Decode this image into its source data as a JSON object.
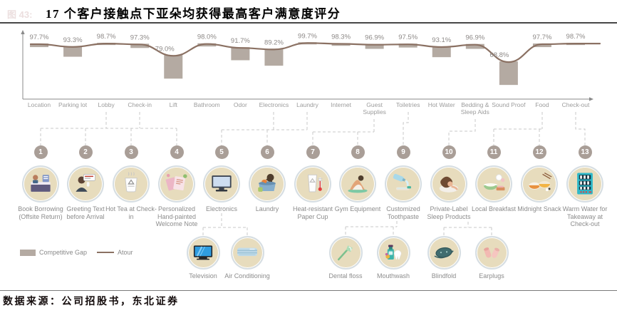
{
  "header": {
    "ghost_label": "图 43:",
    "title": "17 个客户接触点下亚朵均获得最高客户满意度评分"
  },
  "chart_data": {
    "type": "line",
    "title": "17 个客户接触点下亚朵均获得最高客户满意度评分",
    "categories": [
      "Location",
      "Parking lot",
      "Lobby",
      "Check-in",
      "Lift",
      "Bathroom",
      "Odor",
      "Electronics",
      "Laundry",
      "Internet",
      "Guest Supplies",
      "Toiletries",
      "Hot Water",
      "Bedding & Sleep Aids",
      "Sound Proof",
      "Food",
      "Check-out"
    ],
    "series": [
      {
        "name": "Atour",
        "type": "line",
        "color": "#8b7163",
        "unit": "%",
        "values": [
          97.7,
          93.3,
          98.7,
          97.3,
          79.0,
          98.0,
          91.7,
          89.2,
          99.7,
          98.3,
          96.9,
          97.5,
          93.1,
          96.9,
          68.8,
          97.7,
          98.7
        ]
      },
      {
        "name": "Competitive Gap",
        "type": "bar",
        "color": "#b4aaa2",
        "note": "gray bars hang below the Atour line at each touchpoint; bar length depicts the satisfaction gap (no numeric labels shown)"
      }
    ],
    "value_labels": [
      "97.7%",
      "93.3%",
      "98.7%",
      "97.3%",
      "79.0%",
      "98.0%",
      "91.7%",
      "89.2%",
      "99.7%",
      "98.3%",
      "96.9%",
      "97.5%",
      "93.1%",
      "96.9%",
      "68.8%",
      "97.7%",
      "98.7%"
    ],
    "ylim": [
      60,
      100
    ],
    "grid": false,
    "axes": "plain arrowed axes, no tick values",
    "legend_position": "bottom-left"
  },
  "services": [
    {
      "num": "1",
      "label": "Book Borrowing (Offsite Return)",
      "icon": "library-books-icon",
      "linked_touchpoints": [
        "Lobby",
        "Check-in"
      ]
    },
    {
      "num": "2",
      "label": "Greeting Text before Arrival",
      "icon": "greeting-message-icon",
      "linked_touchpoints": [
        "Lobby",
        "Check-in"
      ]
    },
    {
      "num": "3",
      "label": "Hot Tea at Check-in",
      "icon": "tea-cup-icon",
      "linked_touchpoints": [
        "Lobby",
        "Check-in"
      ]
    },
    {
      "num": "4",
      "label": "Personalized Hand-painted Welcome Note",
      "icon": "welcome-note-icon",
      "linked_touchpoints": [
        "Lobby",
        "Check-in"
      ]
    },
    {
      "num": "5",
      "label": "Electronics",
      "icon": "monitor-icon",
      "linked_touchpoints": [
        "Electronics",
        "Laundry"
      ]
    },
    {
      "num": "6",
      "label": "Laundry",
      "icon": "laundry-basket-icon",
      "linked_touchpoints": [
        "Electronics",
        "Laundry"
      ]
    },
    {
      "num": "7",
      "label": "Heat-resistant Paper Cup",
      "icon": "paper-cup-icon",
      "linked_touchpoints": [
        "Guest Supplies"
      ]
    },
    {
      "num": "8",
      "label": "Gym Equipment",
      "icon": "yoga-icon",
      "linked_touchpoints": [
        "Guest Supplies"
      ]
    },
    {
      "num": "9",
      "label": "Customized Toothpaste",
      "icon": "toothpaste-icon",
      "linked_touchpoints": [
        "Toiletries"
      ]
    },
    {
      "num": "10",
      "label": "Private-Label Sleep Products",
      "icon": "sleep-icon",
      "linked_touchpoints": [
        "Bedding & Sleep Aids"
      ]
    },
    {
      "num": "11",
      "label": "Local Breakfast",
      "icon": "breakfast-icon",
      "linked_touchpoints": [
        "Food"
      ]
    },
    {
      "num": "12",
      "label": "Midnight Snack",
      "icon": "midnight-snack-icon",
      "linked_touchpoints": [
        "Food"
      ]
    },
    {
      "num": "13",
      "label": "Warm Water for Takeaway at Check-out",
      "icon": "water-vending-icon",
      "linked_touchpoints": [
        "Check-out"
      ]
    }
  ],
  "sub_services": [
    {
      "label": "Television",
      "icon": "television-icon",
      "parent": "Electronics"
    },
    {
      "label": "Air Conditioning",
      "icon": "air-conditioner-icon",
      "parent": "Electronics"
    },
    {
      "label": "Dental floss",
      "icon": "dental-floss-icon",
      "parent": "Customized Toothpaste"
    },
    {
      "label": "Mouthwash",
      "icon": "mouthwash-icon",
      "parent": "Customized Toothpaste"
    },
    {
      "label": "Blindfold",
      "icon": "blindfold-icon",
      "parent": "Private-Label Sleep Products"
    },
    {
      "label": "Earplugs",
      "icon": "earplugs-icon",
      "parent": "Private-Label Sleep Products"
    }
  ],
  "legend": {
    "gap_label": "Competitive Gap",
    "atour_label": "Atour"
  },
  "colors": {
    "bar": "#b4aaa2",
    "line": "#8b7163",
    "value_label": "#8d8987",
    "category_label": "#9c9c9c",
    "badge": "#a99e97",
    "icon_circle_bg": "#e7dcbd",
    "icon_circle_ring": "#d6dee3",
    "connector": "#c9c9c9",
    "axis": "#8a8a8a"
  },
  "footer": {
    "source": "数据来源：公司招股书，东北证券"
  }
}
